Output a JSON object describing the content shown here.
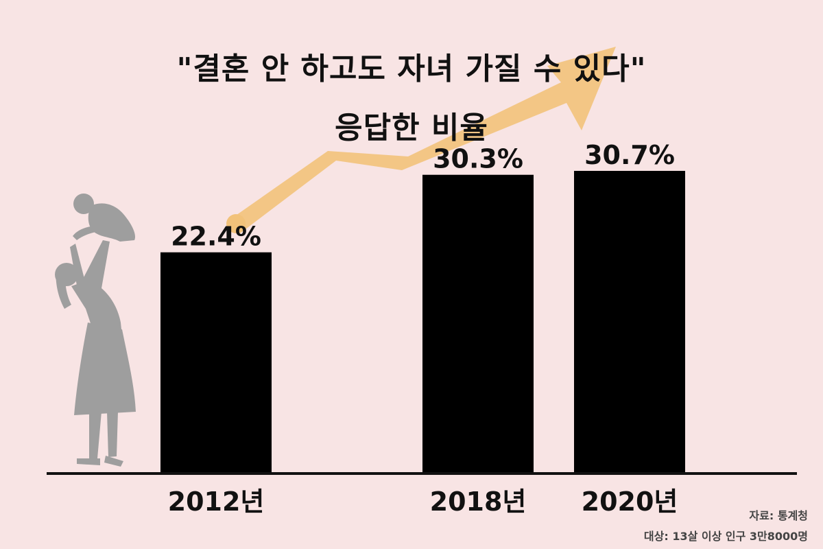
{
  "chart_data": {
    "type": "bar",
    "title_lines": [
      "\"결혼 안 하고도 자녀 가질 수 있다\"",
      "응답한 비율"
    ],
    "categories": [
      "2012년",
      "2018년",
      "2020년"
    ],
    "values": [
      22.4,
      30.3,
      30.7
    ],
    "value_labels": [
      "22.4%",
      "30.3%",
      "30.7%"
    ],
    "ylim": [
      0,
      40
    ],
    "grid": false,
    "legend": "none"
  },
  "notes": {
    "source": "자료: 통계청",
    "subject": "대상: 13살 이상 인구 3만8000명"
  },
  "colors": {
    "background": "#f8e4e4",
    "bar": "#000000",
    "arrow": "#f2c27a",
    "silhouette": "#9e9e9e",
    "baseline": "#111111"
  }
}
